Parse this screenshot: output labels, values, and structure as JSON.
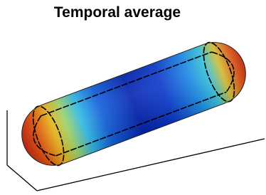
{
  "header": {
    "title": "Temporal average"
  }
}
